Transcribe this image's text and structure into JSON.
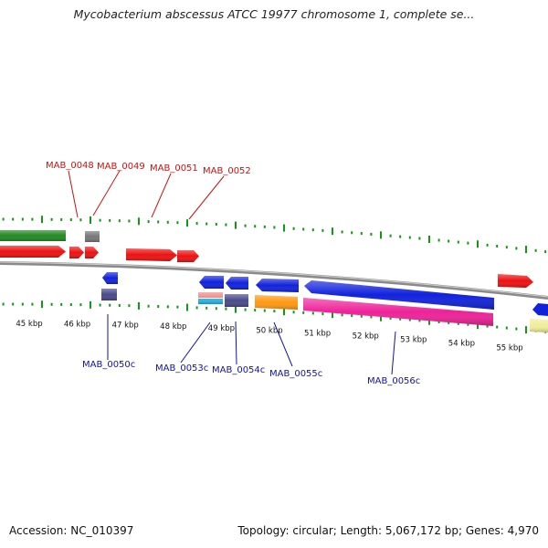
{
  "title": "Mycobacterium abscessus ATCC 19977 chromosome 1, complete se...",
  "footer": {
    "accession": "Accession: NC_010397",
    "summary": "Topology: circular; Length: 5,067,172 bp; Genes: 4,970"
  },
  "colors": {
    "red": "#ee1111",
    "blue": "#1122dd",
    "green": "#228822",
    "gray": "#777777",
    "navy": "#4a4a8a",
    "orange": "#ff9911",
    "magenta": "#ee2299",
    "salmon": "#ee8888",
    "cyan": "#22bbee",
    "yellow": "#eeee99",
    "tick": "#119911",
    "forward_label": "#cc1111",
    "reverse_label": "#1111aa"
  },
  "kbp_labels": [
    "45 kbp",
    "46 kbp",
    "47 kbp",
    "48 kbp",
    "49 kbp",
    "50 kbp",
    "51 kbp",
    "52 kbp",
    "53 kbp",
    "54 kbp",
    "55 kbp"
  ],
  "forward_genes": [
    {
      "label": "MAB_0048"
    },
    {
      "label": "MAB_0049"
    },
    {
      "label": "MAB_0051"
    },
    {
      "label": "MAB_0052"
    }
  ],
  "reverse_genes": [
    {
      "label": "MAB_0050c"
    },
    {
      "label": "MAB_0053c"
    },
    {
      "label": "MAB_0054c"
    },
    {
      "label": "MAB_0055c"
    },
    {
      "label": "MAB_0056c"
    }
  ]
}
